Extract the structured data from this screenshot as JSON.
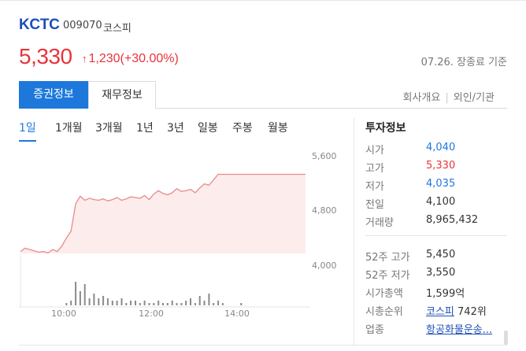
{
  "stock": {
    "name": "KCTC",
    "code": "009070",
    "market": "코스피",
    "price": "5,330",
    "change": "1,230(+30.00%)",
    "as_of": "07.26. 장종료 기준"
  },
  "tabs": {
    "active": "증권정보",
    "second": "재무정보",
    "link1": "회사개요",
    "link2": "외인/기관"
  },
  "periods": [
    "1일",
    "1개월",
    "3개월",
    "1년",
    "3년",
    "일봉",
    "주봉",
    "월봉"
  ],
  "chart_data": {
    "type": "area",
    "x_ticks": [
      "10:00",
      "12:00",
      "14:00"
    ],
    "y_ticks": [
      "5,600",
      "4,800",
      "4,000"
    ],
    "ylim": [
      4000,
      5600
    ],
    "price_series": [
      4200,
      4250,
      4230,
      4210,
      4190,
      4200,
      4180,
      4230,
      4200,
      4280,
      4400,
      4500,
      4900,
      5010,
      4950,
      4980,
      4960,
      4950,
      4970,
      4940,
      4960,
      4990,
      4950,
      4970,
      5000,
      4990,
      4980,
      5020,
      4960,
      5040,
      5090,
      5050,
      5030,
      5060,
      5120,
      5080,
      5090,
      5110,
      5060,
      5130,
      5190,
      5170,
      5250,
      5330,
      5330,
      5330,
      5330,
      5330,
      5330,
      5330,
      5330,
      5330,
      5330,
      5330,
      5330,
      5330,
      5330,
      5330,
      5330,
      5330,
      5330,
      5330,
      5330
    ],
    "volume_series": [
      0,
      0,
      0,
      0,
      0,
      0,
      0,
      0,
      0,
      0,
      1,
      2,
      10,
      6,
      9,
      3,
      5,
      3,
      4,
      3,
      2,
      2,
      3,
      1,
      2,
      2,
      1,
      2,
      1,
      1,
      2,
      1,
      1,
      2,
      1,
      1,
      2,
      3,
      1,
      4,
      2,
      5,
      1,
      2,
      1,
      0,
      0,
      0,
      1,
      0,
      0,
      0,
      0,
      0,
      0,
      0,
      0,
      0,
      0,
      0,
      0,
      0,
      0
    ]
  },
  "investment": {
    "title": "투자정보",
    "rows1": [
      {
        "label": "시가",
        "value": "4,040",
        "color": "#1e78dc"
      },
      {
        "label": "고가",
        "value": "5,330",
        "color": "#e8343a"
      },
      {
        "label": "저가",
        "value": "4,035",
        "color": "#1e78dc"
      },
      {
        "label": "전일",
        "value": "4,100",
        "color": "#333333"
      },
      {
        "label": "거래량",
        "value": "8,965,432",
        "color": "#333333"
      }
    ],
    "rows2": [
      {
        "label": "52주 고가",
        "value": "5,450"
      },
      {
        "label": "52주 저가",
        "value": "3,550"
      },
      {
        "label": "시가총액",
        "value": "1,599억"
      }
    ],
    "rank": {
      "label": "시총순위",
      "link": "코스피",
      "value": "742위"
    },
    "industry": {
      "label": "업종",
      "link": "항공화물운송..."
    }
  }
}
